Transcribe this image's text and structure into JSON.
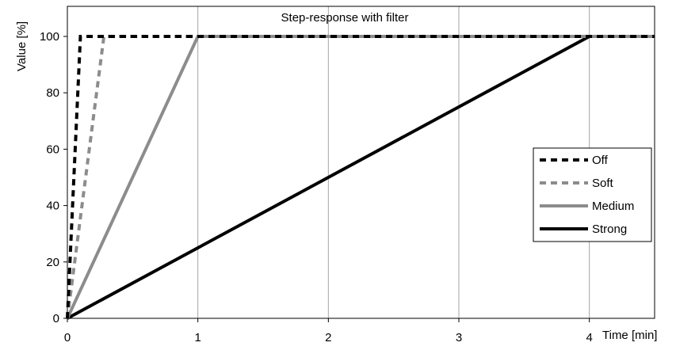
{
  "chart_data": {
    "type": "line",
    "title": "Step-response with filter",
    "xlabel": "Time [min]",
    "ylabel": "Value [%]",
    "xlim": [
      0,
      4.5
    ],
    "ylim": [
      0,
      100
    ],
    "x_ticks": [
      0,
      1,
      2,
      3,
      4
    ],
    "y_ticks": [
      0,
      20,
      40,
      60,
      80,
      100
    ],
    "grid": "vertical",
    "legend_position": "right",
    "series": [
      {
        "name": "Off",
        "x": [
          0,
          0.1,
          4.5
        ],
        "y": [
          0,
          100,
          100
        ],
        "color": "#000000",
        "style": "dashed"
      },
      {
        "name": "Soft",
        "x": [
          0,
          0.28,
          4.5
        ],
        "y": [
          0,
          100,
          100
        ],
        "color": "#8c8c8c",
        "style": "dashed"
      },
      {
        "name": "Medium",
        "x": [
          0,
          1,
          4.5
        ],
        "y": [
          0,
          100,
          100
        ],
        "color": "#8c8c8c",
        "style": "solid"
      },
      {
        "name": "Strong",
        "x": [
          0,
          4,
          4.5
        ],
        "y": [
          0,
          100,
          100
        ],
        "color": "#000000",
        "style": "solid"
      }
    ]
  }
}
